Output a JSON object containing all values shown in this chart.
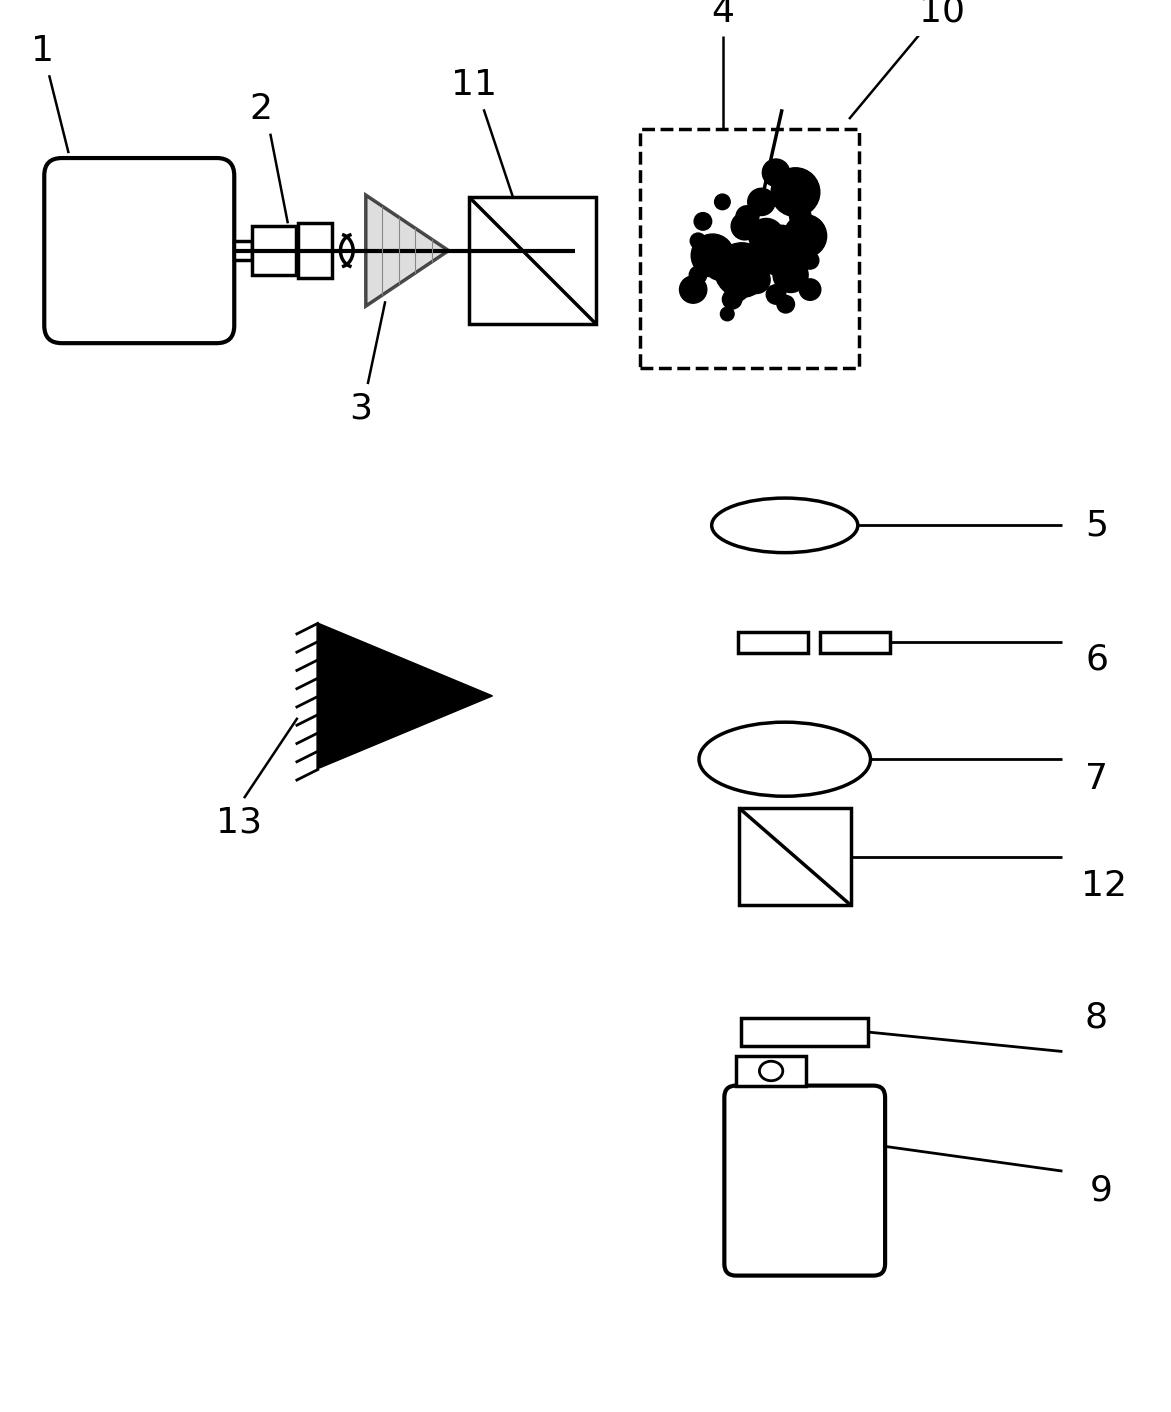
{
  "bg_color": "#ffffff",
  "line_color": "#000000",
  "label_fontsize": 22,
  "figsize": [
    11.71,
    14.12
  ],
  "dpi": 100
}
